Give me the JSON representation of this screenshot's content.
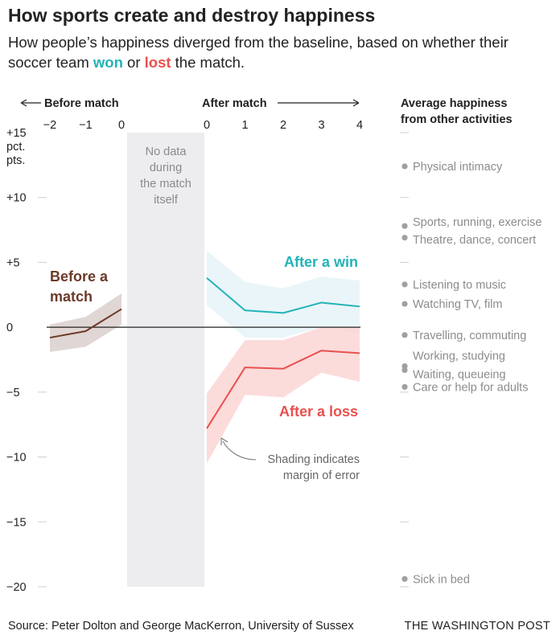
{
  "title": "How sports create and destroy happiness",
  "subtitle": {
    "before": "How people’s happiness diverged from the baseline, based on whether their soccer team ",
    "won": "won",
    "mid": " or ",
    "lost": "lost",
    "after": " the match."
  },
  "source": "Source: Peter Dolton and George MacKerron, University of Sussex",
  "brand": "THE WASHINGTON POST",
  "colors": {
    "win": "#22b3b8",
    "loss": "#e8514f",
    "before": "#6b3a2a",
    "win_band": "#e6f3f8",
    "loss_band": "#fbd5d5",
    "before_band": "#ddd2ce",
    "nodata": "#ededf0",
    "activity": "#8c8c8c"
  },
  "chart_data": {
    "type": "line",
    "y_range": [
      -20,
      15
    ],
    "y_ticks": [
      15,
      10,
      5,
      0,
      -5,
      -10,
      -15,
      -20
    ],
    "y_tick_labels": [
      "+15",
      "+10",
      "+5",
      "0",
      "−5",
      "−10",
      "−15",
      "−20"
    ],
    "y_unit_lines": [
      "pct.",
      "pts."
    ],
    "before_header": "Before match",
    "after_header": "After match",
    "before_ticks": [
      "−2",
      "−1",
      "0"
    ],
    "after_ticks": [
      "0",
      "1",
      "2",
      "3",
      "4"
    ],
    "nodata_label": [
      "No data",
      "during",
      "the match",
      "itself"
    ],
    "series": [
      {
        "name": "Before a match",
        "label_lines": [
          "Before a",
          "match"
        ],
        "phase": "before",
        "x": [
          -2,
          -1,
          0
        ],
        "y": [
          -0.8,
          -0.3,
          1.4
        ],
        "upper": [
          0.2,
          0.8,
          2.6
        ],
        "lower": [
          -1.9,
          -1.5,
          0.2
        ]
      },
      {
        "name": "After a win",
        "label_lines": [
          "After a win"
        ],
        "phase": "after",
        "x": [
          0,
          1,
          2,
          3,
          4
        ],
        "y": [
          3.8,
          1.3,
          1.1,
          1.9,
          1.6
        ],
        "upper": [
          5.9,
          3.5,
          3.0,
          3.9,
          3.6
        ],
        "lower": [
          1.7,
          -0.8,
          -0.8,
          0.0,
          -0.5
        ]
      },
      {
        "name": "After a loss",
        "label_lines": [
          "After a loss"
        ],
        "phase": "after",
        "x": [
          0,
          1,
          2,
          3,
          4
        ],
        "y": [
          -7.8,
          -3.1,
          -3.2,
          -1.8,
          -2.0
        ],
        "upper": [
          -5.1,
          -1.0,
          -1.0,
          0.0,
          0.0
        ],
        "lower": [
          -10.5,
          -5.2,
          -5.4,
          -3.5,
          -4.2
        ]
      }
    ],
    "annotation": [
      "Shading indicates",
      "margin of error"
    ],
    "activities_header": [
      "Average happiness",
      "from other activities"
    ],
    "activities": [
      {
        "label": "Physical intimacy",
        "value": 12.4
      },
      {
        "label": "Sports, running, exercise",
        "value": 7.8
      },
      {
        "label": "Theatre, dance, concert",
        "value": 6.9
      },
      {
        "label": "Listening to music",
        "value": 3.3
      },
      {
        "label": "Watching TV, film",
        "value": 1.8
      },
      {
        "label": "Travelling, commuting",
        "value": -0.6
      },
      {
        "label": "Working, studying",
        "value": -3.0
      },
      {
        "label": "Waiting, queueing",
        "value": -3.3
      },
      {
        "label": "Care or help for adults",
        "value": -4.6
      },
      {
        "label": "Sick in bed",
        "value": -19.4
      }
    ]
  }
}
